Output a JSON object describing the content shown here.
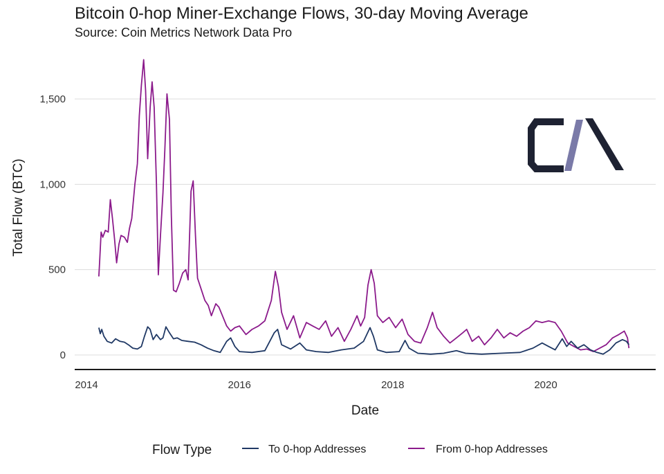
{
  "chart_data": {
    "type": "line",
    "title": "Bitcoin 0-hop Miner-Exchange Flows, 30-day Moving Average",
    "subtitle": "Source: Coin Metrics Network Data Pro",
    "xlabel": "Date",
    "ylabel": "Total Flow (BTC)",
    "xlim": [
      "2014-01-01",
      "2021-08-01"
    ],
    "ylim": [
      -80,
      1750
    ],
    "x_ticks": [
      {
        "date": "2014-01-01",
        "label": "2014"
      },
      {
        "date": "2016-01-01",
        "label": "2016"
      },
      {
        "date": "2018-01-01",
        "label": "2018"
      },
      {
        "date": "2020-01-01",
        "label": "2020"
      }
    ],
    "y_ticks": [
      {
        "value": 0,
        "label": "0"
      },
      {
        "value": 500,
        "label": "500"
      },
      {
        "value": 1000,
        "label": "1,000"
      },
      {
        "value": 1500,
        "label": "1,500"
      }
    ],
    "grid": true,
    "legend": {
      "title": "Flow Type",
      "position": "bottom"
    },
    "logo_text": "CM",
    "series": [
      {
        "name": "To 0-hop Addresses",
        "color": "#1f3864",
        "points": [
          [
            "2014-03-01",
            160
          ],
          [
            "2014-03-08",
            125
          ],
          [
            "2014-03-15",
            150
          ],
          [
            "2014-03-25",
            110
          ],
          [
            "2014-04-10",
            80
          ],
          [
            "2014-05-01",
            70
          ],
          [
            "2014-05-20",
            95
          ],
          [
            "2014-06-10",
            80
          ],
          [
            "2014-07-01",
            75
          ],
          [
            "2014-07-20",
            60
          ],
          [
            "2014-08-10",
            40
          ],
          [
            "2014-09-01",
            35
          ],
          [
            "2014-09-20",
            50
          ],
          [
            "2014-10-05",
            110
          ],
          [
            "2014-10-20",
            165
          ],
          [
            "2014-11-01",
            150
          ],
          [
            "2014-11-15",
            90
          ],
          [
            "2014-12-01",
            120
          ],
          [
            "2014-12-20",
            90
          ],
          [
            "2015-01-01",
            100
          ],
          [
            "2015-01-15",
            165
          ],
          [
            "2015-02-01",
            130
          ],
          [
            "2015-02-20",
            95
          ],
          [
            "2015-03-10",
            100
          ],
          [
            "2015-04-01",
            85
          ],
          [
            "2015-05-01",
            80
          ],
          [
            "2015-06-01",
            75
          ],
          [
            "2015-07-01",
            60
          ],
          [
            "2015-08-01",
            40
          ],
          [
            "2015-09-01",
            25
          ],
          [
            "2015-10-01",
            15
          ],
          [
            "2015-11-01",
            80
          ],
          [
            "2015-11-20",
            100
          ],
          [
            "2015-12-10",
            50
          ],
          [
            "2016-01-01",
            20
          ],
          [
            "2016-03-01",
            15
          ],
          [
            "2016-05-01",
            25
          ],
          [
            "2016-06-15",
            130
          ],
          [
            "2016-07-01",
            150
          ],
          [
            "2016-07-20",
            60
          ],
          [
            "2016-09-01",
            35
          ],
          [
            "2016-10-15",
            70
          ],
          [
            "2016-11-15",
            30
          ],
          [
            "2017-01-01",
            20
          ],
          [
            "2017-03-01",
            15
          ],
          [
            "2017-05-01",
            30
          ],
          [
            "2017-07-01",
            40
          ],
          [
            "2017-08-15",
            80
          ],
          [
            "2017-09-15",
            160
          ],
          [
            "2017-10-01",
            110
          ],
          [
            "2017-10-20",
            30
          ],
          [
            "2017-12-01",
            15
          ],
          [
            "2018-02-01",
            20
          ],
          [
            "2018-03-01",
            85
          ],
          [
            "2018-03-20",
            40
          ],
          [
            "2018-05-01",
            10
          ],
          [
            "2018-07-01",
            5
          ],
          [
            "2018-09-01",
            10
          ],
          [
            "2018-11-01",
            25
          ],
          [
            "2018-12-15",
            10
          ],
          [
            "2019-03-01",
            5
          ],
          [
            "2019-06-01",
            10
          ],
          [
            "2019-09-01",
            15
          ],
          [
            "2019-11-01",
            40
          ],
          [
            "2019-12-15",
            70
          ],
          [
            "2020-01-15",
            50
          ],
          [
            "2020-02-15",
            30
          ],
          [
            "2020-03-20",
            95
          ],
          [
            "2020-04-10",
            50
          ],
          [
            "2020-05-01",
            80
          ],
          [
            "2020-06-01",
            40
          ],
          [
            "2020-07-01",
            60
          ],
          [
            "2020-08-01",
            30
          ],
          [
            "2020-09-01",
            15
          ],
          [
            "2020-10-01",
            5
          ],
          [
            "2020-11-01",
            30
          ],
          [
            "2020-12-01",
            70
          ],
          [
            "2021-01-01",
            90
          ],
          [
            "2021-01-20",
            80
          ],
          [
            "2021-02-01",
            60
          ]
        ]
      },
      {
        "name": "From 0-hop Addresses",
        "color": "#8b1a8b",
        "points": [
          [
            "2014-03-01",
            460
          ],
          [
            "2014-03-05",
            550
          ],
          [
            "2014-03-12",
            720
          ],
          [
            "2014-03-20",
            690
          ],
          [
            "2014-04-01",
            730
          ],
          [
            "2014-04-15",
            720
          ],
          [
            "2014-04-25",
            910
          ],
          [
            "2014-05-05",
            800
          ],
          [
            "2014-05-15",
            680
          ],
          [
            "2014-05-25",
            540
          ],
          [
            "2014-06-05",
            650
          ],
          [
            "2014-06-15",
            700
          ],
          [
            "2014-07-01",
            690
          ],
          [
            "2014-07-15",
            660
          ],
          [
            "2014-07-25",
            740
          ],
          [
            "2014-08-05",
            800
          ],
          [
            "2014-08-20",
            1000
          ],
          [
            "2014-09-01",
            1120
          ],
          [
            "2014-09-10",
            1400
          ],
          [
            "2014-09-20",
            1580
          ],
          [
            "2014-10-01",
            1730
          ],
          [
            "2014-10-10",
            1550
          ],
          [
            "2014-10-20",
            1150
          ],
          [
            "2014-11-01",
            1450
          ],
          [
            "2014-11-10",
            1600
          ],
          [
            "2014-11-20",
            1450
          ],
          [
            "2014-12-01",
            1000
          ],
          [
            "2014-12-10",
            470
          ],
          [
            "2014-12-20",
            700
          ],
          [
            "2015-01-01",
            950
          ],
          [
            "2015-01-10",
            1200
          ],
          [
            "2015-01-20",
            1530
          ],
          [
            "2015-02-01",
            1380
          ],
          [
            "2015-02-10",
            820
          ],
          [
            "2015-02-20",
            380
          ],
          [
            "2015-03-05",
            370
          ],
          [
            "2015-03-20",
            420
          ],
          [
            "2015-04-05",
            480
          ],
          [
            "2015-04-20",
            500
          ],
          [
            "2015-05-01",
            440
          ],
          [
            "2015-05-15",
            960
          ],
          [
            "2015-05-25",
            1020
          ],
          [
            "2015-06-05",
            700
          ],
          [
            "2015-06-15",
            450
          ],
          [
            "2015-07-01",
            390
          ],
          [
            "2015-07-20",
            320
          ],
          [
            "2015-08-05",
            290
          ],
          [
            "2015-08-20",
            230
          ],
          [
            "2015-09-10",
            300
          ],
          [
            "2015-09-25",
            280
          ],
          [
            "2015-10-15",
            220
          ],
          [
            "2015-11-01",
            170
          ],
          [
            "2015-11-20",
            140
          ],
          [
            "2015-12-10",
            160
          ],
          [
            "2016-01-01",
            170
          ],
          [
            "2016-02-01",
            120
          ],
          [
            "2016-03-01",
            150
          ],
          [
            "2016-04-01",
            170
          ],
          [
            "2016-05-01",
            200
          ],
          [
            "2016-06-01",
            320
          ],
          [
            "2016-06-20",
            490
          ],
          [
            "2016-07-05",
            400
          ],
          [
            "2016-07-20",
            250
          ],
          [
            "2016-08-15",
            150
          ],
          [
            "2016-09-15",
            230
          ],
          [
            "2016-10-15",
            100
          ],
          [
            "2016-11-15",
            190
          ],
          [
            "2016-12-15",
            170
          ],
          [
            "2017-01-15",
            150
          ],
          [
            "2017-02-15",
            200
          ],
          [
            "2017-03-15",
            110
          ],
          [
            "2017-04-15",
            160
          ],
          [
            "2017-05-15",
            80
          ],
          [
            "2017-06-15",
            150
          ],
          [
            "2017-07-15",
            230
          ],
          [
            "2017-08-01",
            170
          ],
          [
            "2017-08-20",
            220
          ],
          [
            "2017-09-05",
            410
          ],
          [
            "2017-09-20",
            500
          ],
          [
            "2017-10-05",
            420
          ],
          [
            "2017-10-20",
            230
          ],
          [
            "2017-11-15",
            190
          ],
          [
            "2017-12-15",
            220
          ],
          [
            "2018-01-15",
            160
          ],
          [
            "2018-02-15",
            210
          ],
          [
            "2018-03-15",
            120
          ],
          [
            "2018-04-15",
            80
          ],
          [
            "2018-05-15",
            70
          ],
          [
            "2018-06-15",
            160
          ],
          [
            "2018-07-10",
            250
          ],
          [
            "2018-08-01",
            160
          ],
          [
            "2018-09-01",
            110
          ],
          [
            "2018-10-01",
            70
          ],
          [
            "2018-11-01",
            100
          ],
          [
            "2018-12-01",
            130
          ],
          [
            "2018-12-20",
            150
          ],
          [
            "2019-01-15",
            80
          ],
          [
            "2019-02-15",
            110
          ],
          [
            "2019-03-15",
            60
          ],
          [
            "2019-04-15",
            100
          ],
          [
            "2019-05-15",
            150
          ],
          [
            "2019-06-15",
            100
          ],
          [
            "2019-07-15",
            130
          ],
          [
            "2019-08-15",
            110
          ],
          [
            "2019-09-15",
            140
          ],
          [
            "2019-10-15",
            160
          ],
          [
            "2019-11-15",
            200
          ],
          [
            "2019-12-15",
            190
          ],
          [
            "2020-01-15",
            200
          ],
          [
            "2020-02-15",
            190
          ],
          [
            "2020-03-15",
            140
          ],
          [
            "2020-04-15",
            70
          ],
          [
            "2020-05-15",
            50
          ],
          [
            "2020-06-15",
            30
          ],
          [
            "2020-07-15",
            35
          ],
          [
            "2020-08-15",
            20
          ],
          [
            "2020-09-15",
            40
          ],
          [
            "2020-10-15",
            60
          ],
          [
            "2020-11-15",
            100
          ],
          [
            "2020-12-15",
            120
          ],
          [
            "2021-01-10",
            140
          ],
          [
            "2021-01-25",
            100
          ],
          [
            "2021-02-01",
            40
          ]
        ]
      }
    ]
  }
}
